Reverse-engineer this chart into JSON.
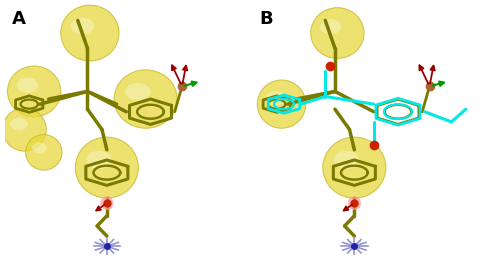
{
  "figure_width": 5.0,
  "figure_height": 2.59,
  "dpi": 100,
  "background_color": "#ffffff",
  "label_A": "A",
  "label_B": "B",
  "label_fontsize": 13,
  "label_fontweight": "bold",
  "bg_color": "#dce8f0",
  "yellow_face": "#E8D840",
  "yellow_edge": "#C8B820",
  "olive": "#7A7A00",
  "cyan": "#00E8E8",
  "red": "#CC2200",
  "green": "#009900",
  "dark_red": "#990000",
  "blue_spoke": "#8888CC",
  "blue_center": "#2222AA",
  "pink": "#FF9999"
}
